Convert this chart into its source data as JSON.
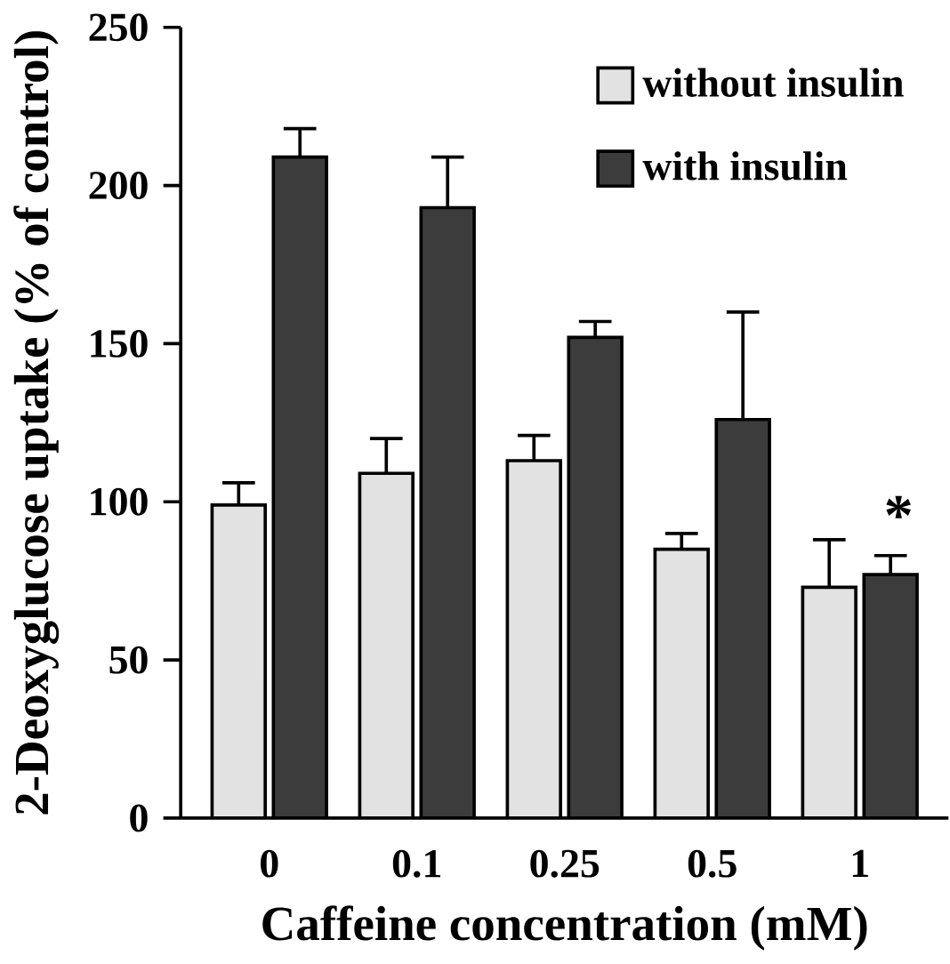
{
  "chart_data": {
    "type": "bar",
    "xlabel": "Caffeine concentration (mM)",
    "ylabel": "2-Deoxyglucose uptake (% of control)",
    "categories": [
      "0",
      "0.1",
      "0.25",
      "0.5",
      "1"
    ],
    "series": [
      {
        "name": "without insulin",
        "color": "#e2e2e2",
        "values": [
          99,
          109,
          113,
          85,
          73
        ],
        "errors": [
          7,
          11,
          8,
          5,
          15
        ]
      },
      {
        "name": "with insulin",
        "color": "#3c3c3c",
        "values": [
          209,
          193,
          152,
          126,
          77
        ],
        "errors": [
          9,
          16,
          5,
          34,
          6
        ]
      }
    ],
    "ylim": [
      0,
      250
    ],
    "yticks": [
      0,
      50,
      100,
      150,
      200,
      250
    ],
    "legend": "top right",
    "annotations": [
      "*"
    ]
  }
}
